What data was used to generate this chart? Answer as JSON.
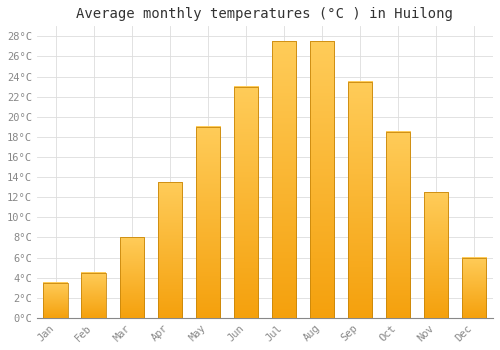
{
  "title": "Average monthly temperatures (°C ) in Huilong",
  "months": [
    "Jan",
    "Feb",
    "Mar",
    "Apr",
    "May",
    "Jun",
    "Jul",
    "Aug",
    "Sep",
    "Oct",
    "Nov",
    "Dec"
  ],
  "values": [
    3.5,
    4.5,
    8.0,
    13.5,
    19.0,
    23.0,
    27.5,
    27.5,
    23.5,
    18.5,
    12.5,
    6.0
  ],
  "bar_color_top": "#FFB733",
  "bar_color_bottom": "#F5A000",
  "bar_edge_color": "#C8860A",
  "background_color": "#FFFFFF",
  "grid_color": "#DDDDDD",
  "ylim": [
    0,
    29
  ],
  "yticks": [
    0,
    2,
    4,
    6,
    8,
    10,
    12,
    14,
    16,
    18,
    20,
    22,
    24,
    26,
    28
  ],
  "title_fontsize": 10,
  "tick_fontsize": 7.5,
  "tick_label_color": "#888888",
  "font_family": "monospace"
}
